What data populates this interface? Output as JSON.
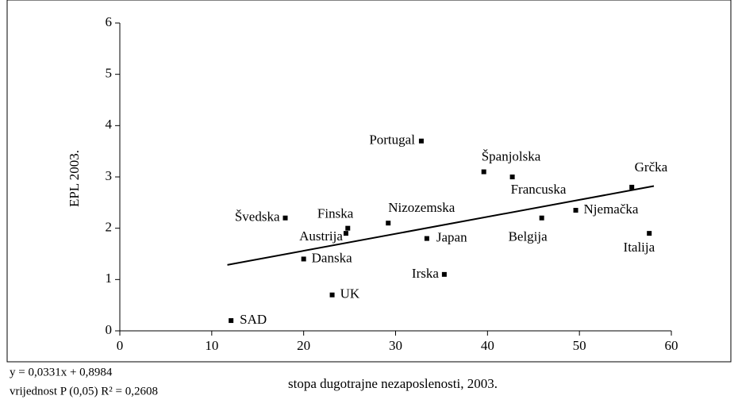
{
  "chart_data": {
    "type": "scatter",
    "x_label": "stopa dugotrajne nezaposlenosti, 2003.",
    "y_label": "EPL 2003.",
    "annotations": [
      "y = 0,0331x + 0,8984",
      "vrijednost P (0,05) R² = 0,2608"
    ],
    "series": [
      {
        "color": "#000000",
        "labels": [
          "SAD",
          "UK",
          "Danska",
          "Švedska",
          "Finska",
          "Austrija",
          "Nizozemska",
          "Japan",
          "Irska",
          "Portugal",
          "Španjolska",
          "Francuska",
          "Belgija",
          "Njemačka",
          "Grčka",
          "Italija"
        ],
        "x": [
          12.1,
          23.1,
          20.0,
          18.0,
          24.8,
          24.6,
          29.2,
          33.4,
          35.3,
          32.8,
          39.6,
          42.7,
          45.9,
          49.6,
          55.7,
          57.6
        ],
        "values": [
          0.2,
          0.7,
          1.4,
          2.2,
          2.0,
          1.9,
          2.1,
          1.8,
          1.1,
          3.7,
          3.1,
          3.0,
          2.2,
          2.35,
          2.8,
          1.9
        ]
      }
    ],
    "trendline": {
      "slope": 0.0331,
      "intercept": 0.8984,
      "x_range": [
        11.7,
        58.1
      ],
      "color": "#000000"
    },
    "xlim": [
      0,
      60
    ],
    "xticks": [
      0,
      10,
      20,
      30,
      40,
      50,
      60
    ],
    "ylim": [
      0,
      6
    ],
    "yticks": [
      0,
      1,
      2,
      3,
      4,
      5,
      6
    ],
    "grid": false
  }
}
